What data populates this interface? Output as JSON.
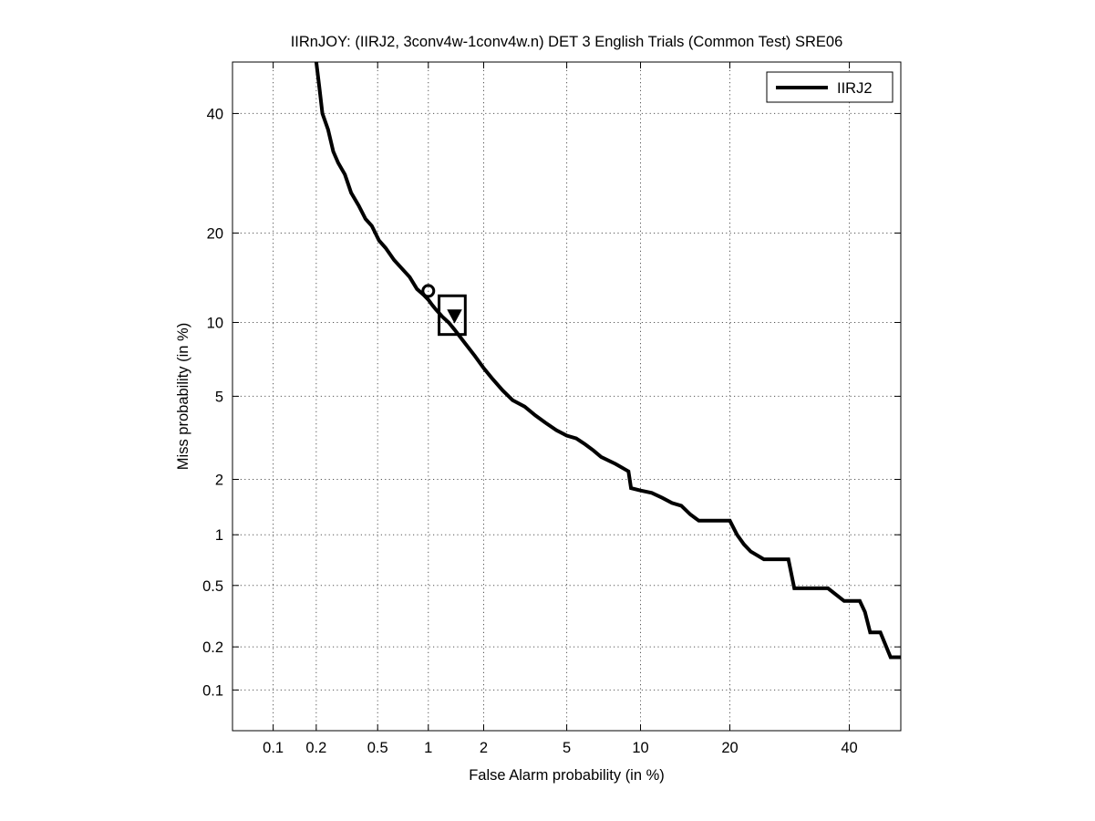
{
  "chart_data": {
    "type": "line",
    "title": "IIRnJOY: (IIRJ2, 3conv4w-1conv4w.n) DET 3 English Trials (Common Test) SRE06",
    "xlabel": "False Alarm probability (in %)",
    "ylabel": "Miss probability (in %)",
    "x_scale": "normal-deviate (probit)",
    "y_scale": "normal-deviate (probit)",
    "xlim": [
      0.05,
      50
    ],
    "ylim": [
      0.05,
      50
    ],
    "x_ticks": [
      0.1,
      0.2,
      0.5,
      1,
      2,
      5,
      10,
      20,
      40
    ],
    "x_tick_labels": [
      "0.1",
      "0.2",
      "0.5",
      "1",
      "2",
      "5",
      "10",
      "20",
      "40"
    ],
    "y_ticks": [
      0.1,
      0.2,
      0.5,
      1,
      2,
      5,
      10,
      20,
      40
    ],
    "y_tick_labels": [
      "0.1",
      "0.2",
      "0.5",
      "1",
      "2",
      "5",
      "10",
      "20",
      "40"
    ],
    "grid": true,
    "legend": {
      "position": "top-right",
      "entries": [
        "IIRJ2"
      ]
    },
    "series": [
      {
        "name": "IIRJ2",
        "color": "#000000",
        "x": [
          0.2,
          0.21,
          0.22,
          0.24,
          0.26,
          0.28,
          0.31,
          0.34,
          0.38,
          0.42,
          0.46,
          0.51,
          0.56,
          0.63,
          0.7,
          0.78,
          0.86,
          0.94,
          1.0,
          1.05,
          1.1,
          1.2,
          1.3,
          1.4,
          1.6,
          1.8,
          2.0,
          2.2,
          2.5,
          2.8,
          3.2,
          3.6,
          4.0,
          4.5,
          5.0,
          5.5,
          6.0,
          6.5,
          7.0,
          8.0,
          9.0,
          9.2,
          10.0,
          11.0,
          12.0,
          13.0,
          14.0,
          15.0,
          16.0,
          18.0,
          20.0,
          21.0,
          22.0,
          23.0,
          25.0,
          27.0,
          29.0,
          30.0,
          33.0,
          36.0,
          39.0,
          42.0,
          43.0,
          44.0,
          46.0,
          48.0,
          50.0
        ],
        "y": [
          50.0,
          45.0,
          40.0,
          37.0,
          33.0,
          31.0,
          29.0,
          26.0,
          24.0,
          22.0,
          21.0,
          19.0,
          18.0,
          16.5,
          15.5,
          14.5,
          13.2,
          12.6,
          12.1,
          11.6,
          11.2,
          10.5,
          10.0,
          9.4,
          8.3,
          7.4,
          6.6,
          6.0,
          5.3,
          4.8,
          4.5,
          4.1,
          3.8,
          3.5,
          3.3,
          3.2,
          3.0,
          2.8,
          2.6,
          2.4,
          2.2,
          1.8,
          1.75,
          1.7,
          1.6,
          1.5,
          1.45,
          1.3,
          1.2,
          1.2,
          1.2,
          1.0,
          0.88,
          0.8,
          0.72,
          0.72,
          0.72,
          0.48,
          0.48,
          0.48,
          0.4,
          0.4,
          0.34,
          0.25,
          0.25,
          0.17,
          0.17
        ]
      }
    ],
    "markers": [
      {
        "label": "actual decision point",
        "shape": "circle",
        "x": 1.0,
        "y": 13.0
      },
      {
        "label": "min DCF point",
        "shape": "triangle-down",
        "x": 1.4,
        "y": 10.6
      }
    ],
    "confidence_box": {
      "x_range": [
        1.15,
        1.6
      ],
      "y_range": [
        9.0,
        12.5
      ]
    }
  }
}
